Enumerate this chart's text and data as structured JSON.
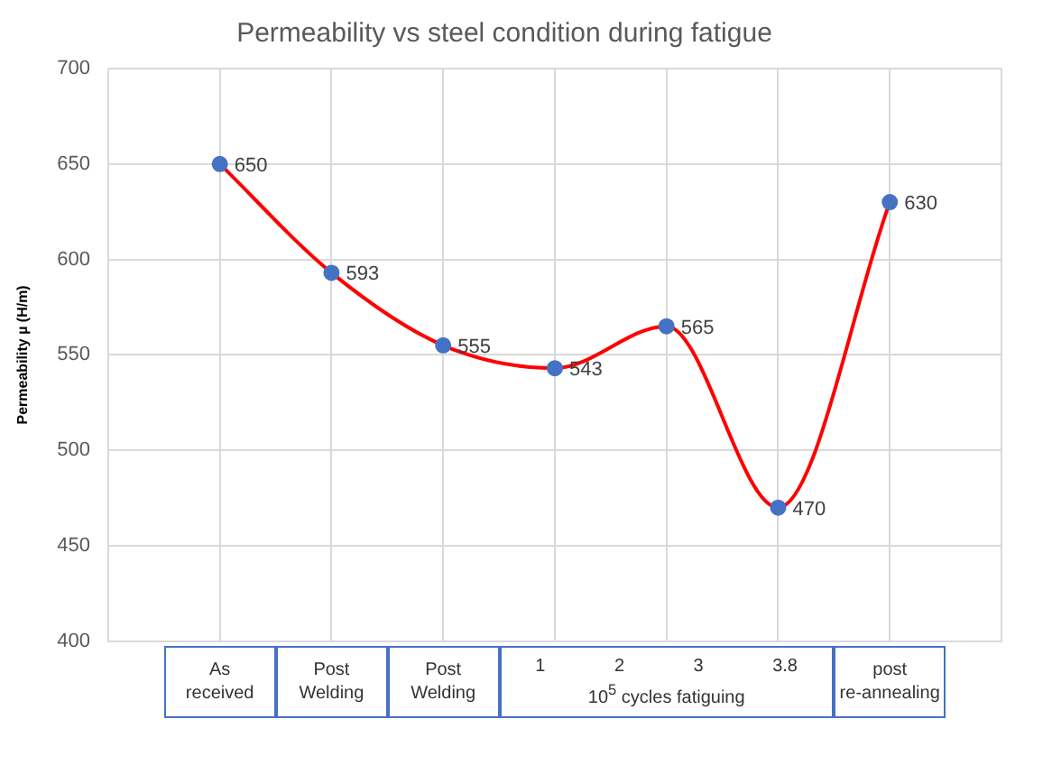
{
  "chart_data": {
    "type": "line",
    "title": "Permeability vs steel condition during fatigue",
    "ylabel": "Permeability µ (H/m)",
    "categories": [
      "As received",
      "Post Welding",
      "Post Welding",
      null,
      null,
      null,
      "post re-annealing"
    ],
    "series": [
      {
        "color": "#ff0000",
        "colors": [
          "#4472c4",
          "#4472c4",
          "#4472c4",
          "#4472c4",
          "#4472c4",
          "#4472c4",
          "#4472c4"
        ],
        "values": [
          650,
          593,
          555,
          543,
          565,
          470,
          630
        ]
      }
    ],
    "annotations": [
      "1",
      "2",
      "3",
      "3.8",
      "10$^{5}$ cycles fatiguing"
    ],
    "ylim": [
      400,
      700
    ],
    "yticks": [
      400,
      450,
      500,
      550,
      600,
      650,
      700
    ],
    "grid": true,
    "legend": false,
    "marker": "circle",
    "data_labels": true
  }
}
